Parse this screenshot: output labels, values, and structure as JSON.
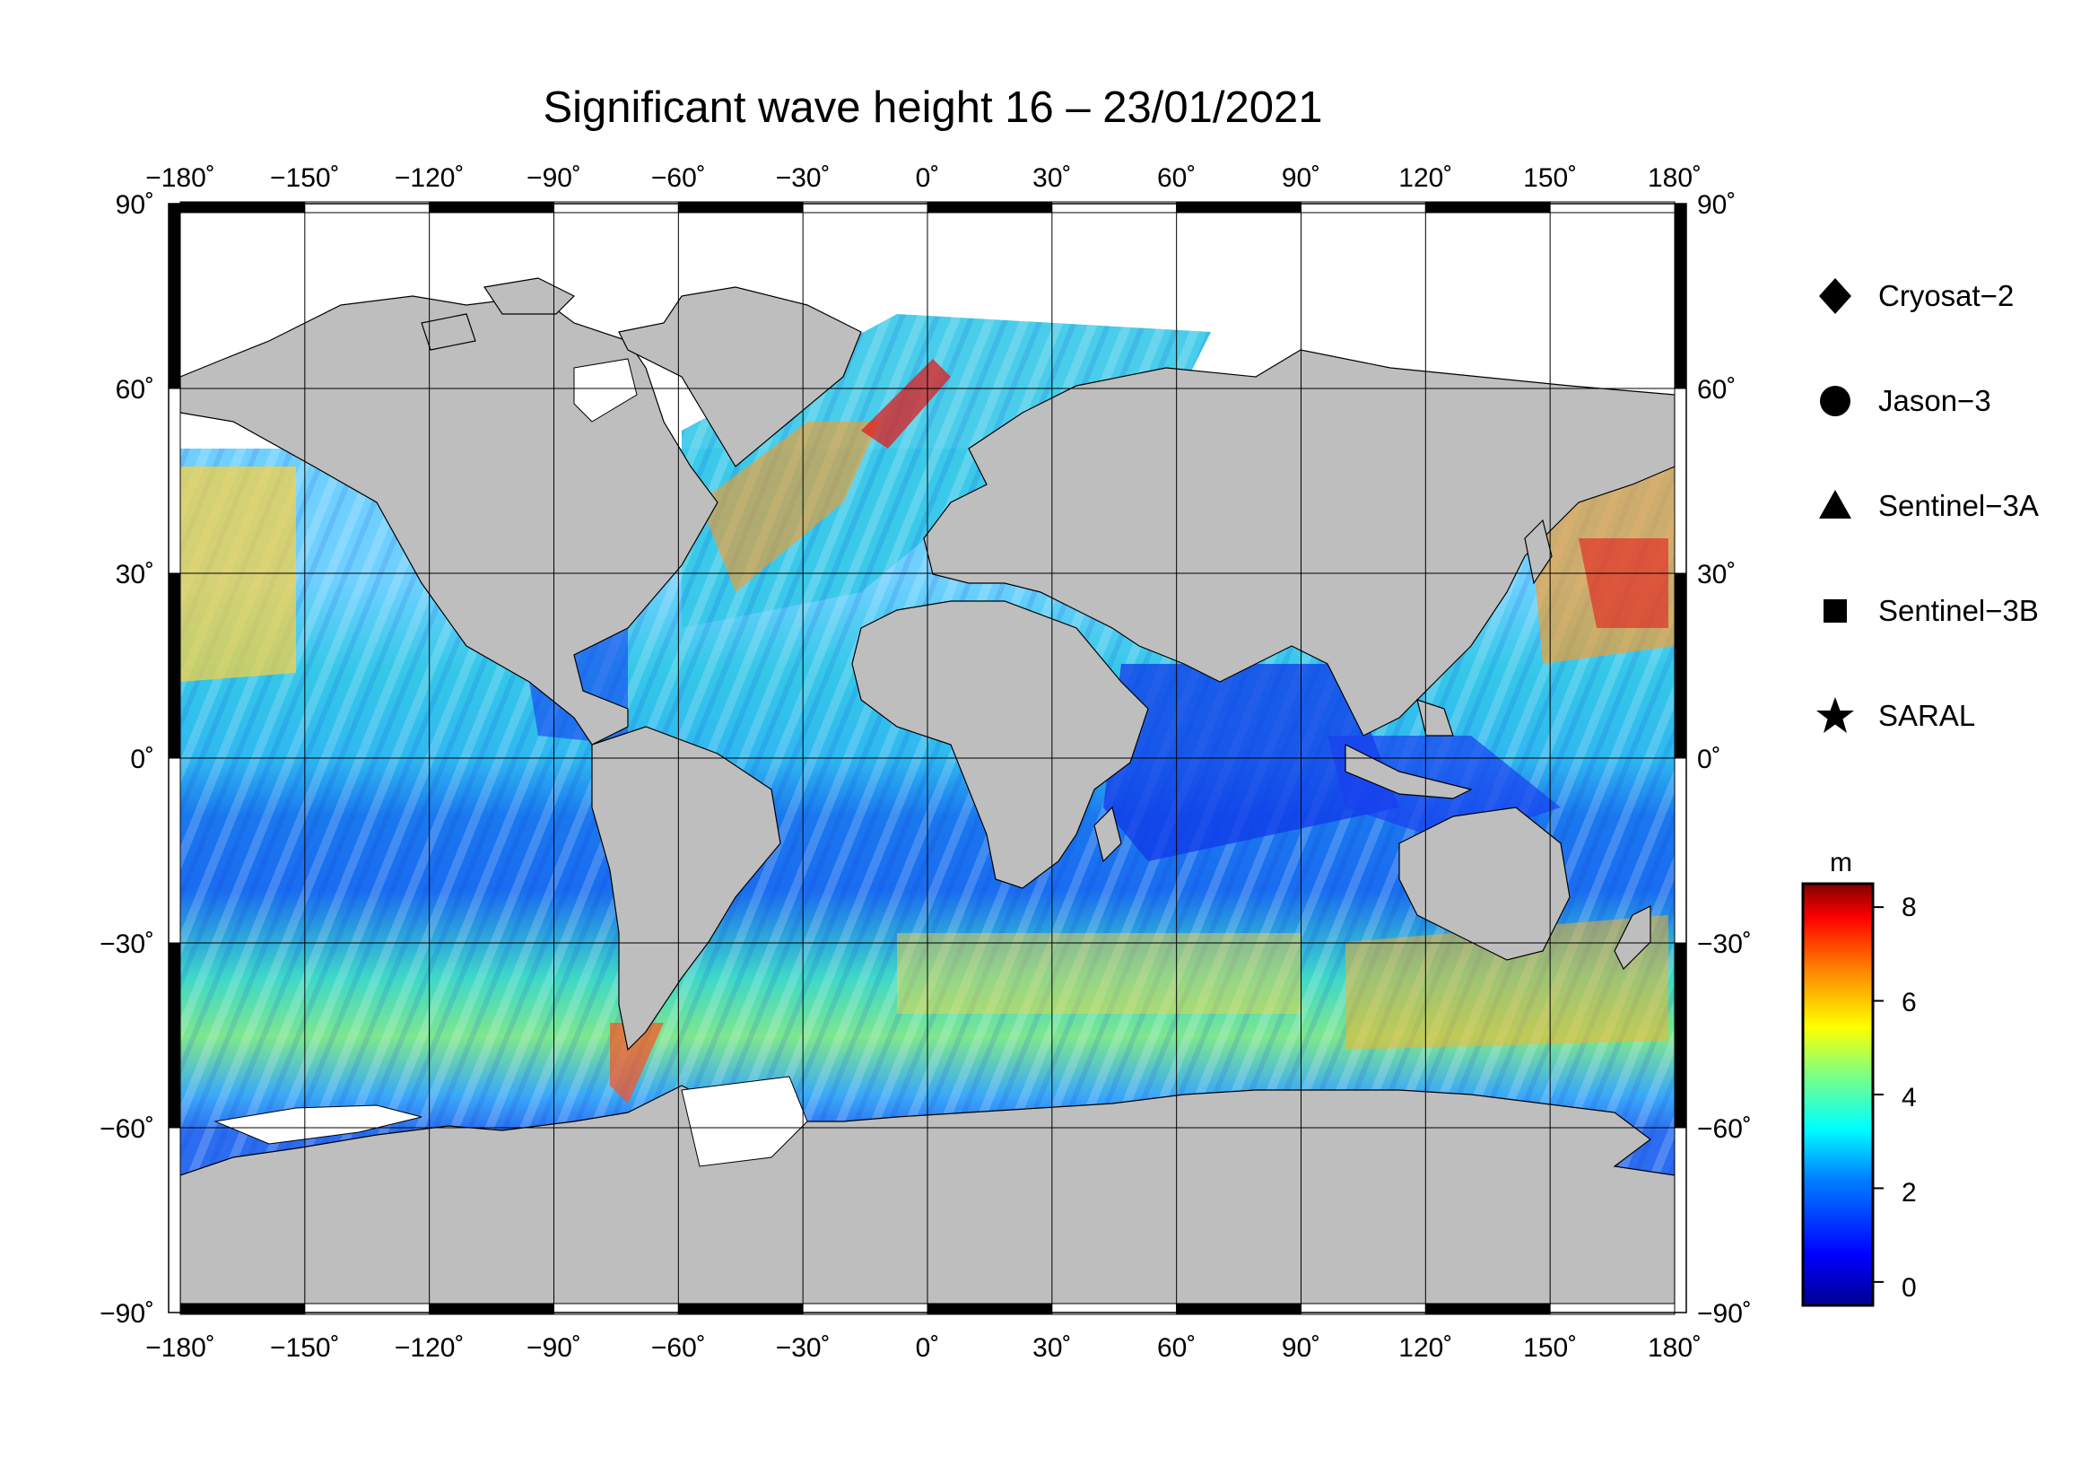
{
  "title": "Significant wave height 16 – 23/01/2021",
  "map": {
    "projection": "equirectangular",
    "lon_range": [
      -180,
      180
    ],
    "lat_range": [
      -90,
      90
    ],
    "lon_tick_labels": [
      "−180˚",
      "−150˚",
      "−120˚",
      "−90˚",
      "−60˚",
      "−30˚",
      "0˚",
      "30˚",
      "60˚",
      "90˚",
      "120˚",
      "150˚",
      "180˚"
    ],
    "lat_tick_labels": [
      "90˚",
      "60˚",
      "30˚",
      "0˚",
      "−30˚",
      "−60˚",
      "−90˚"
    ],
    "grid": true,
    "land_color": "#bebebe",
    "ocean_colormap": "jet",
    "high_wave_regions": [
      "North Atlantic",
      "North Pacific",
      "Southern Ocean"
    ]
  },
  "legend": {
    "title": "",
    "items": [
      {
        "symbol": "diamond-icon",
        "label": "Cryosat−2"
      },
      {
        "symbol": "circle-icon",
        "label": "Jason−3"
      },
      {
        "symbol": "triangle-icon",
        "label": "Sentinel−3A"
      },
      {
        "symbol": "square-icon",
        "label": "Sentinel−3B"
      },
      {
        "symbol": "star-icon",
        "label": "SARAL"
      }
    ]
  },
  "colorbar": {
    "unit": "m",
    "min": -0.5,
    "max": 8.5,
    "ticks": [
      "8",
      "6",
      "4",
      "2",
      "0"
    ],
    "colormap": [
      "#00008f",
      "#0000ff",
      "#0080ff",
      "#00ffff",
      "#80ff80",
      "#ffff00",
      "#ff8000",
      "#ff0000",
      "#800000"
    ]
  }
}
